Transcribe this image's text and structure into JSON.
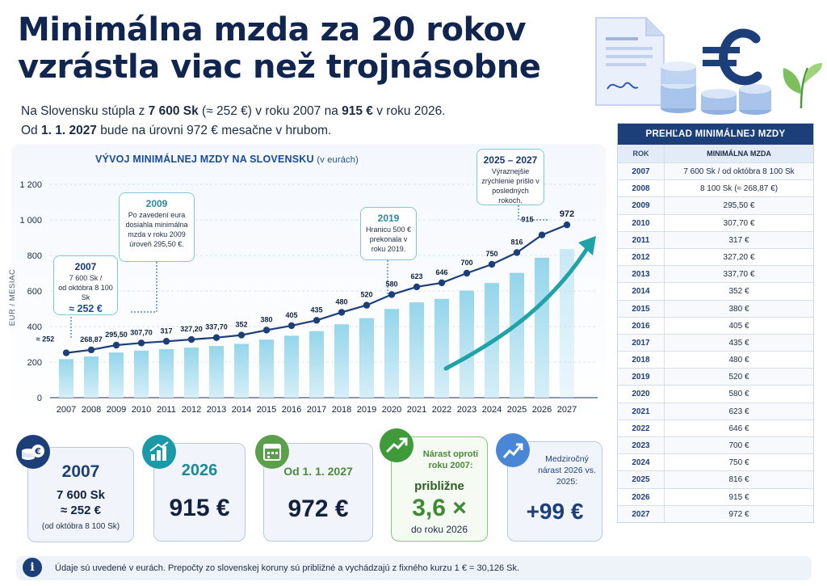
{
  "title": {
    "line1": "Minimálna mzda za 20 rokov",
    "line2": "vzrástla viac než trojnásobne"
  },
  "subtitle": {
    "l1_pre": "Na Slovensku stúpla z ",
    "l1_b1": "7 600 Sk",
    "l1_mid": " (≈ 252 €) v roku 2007 na ",
    "l1_b2": "915 €",
    "l1_post": " v roku 2026.",
    "l2_pre": "Od ",
    "l2_b": "1. 1. 2027",
    "l2_post": " bude na úrovni 972 € mesačne v hrubom."
  },
  "colors": {
    "navy": "#1c3f7a",
    "line": "#1c3f7a",
    "bar_top": "#8fd3ea",
    "bar_bottom": "#d4eef7",
    "arrow": "#1fa2a8"
  },
  "chart_data": {
    "type": "bar",
    "title": "VÝVOJ MINIMÁLNEJ MZDY NA SLOVENSKU",
    "title_unit": "(v eurách)",
    "ylabel": "EUR / MESIAC",
    "ylim": [
      0,
      1200
    ],
    "yticks": [
      0,
      200,
      400,
      600,
      800,
      1000,
      1200
    ],
    "ytick_labels": [
      "0",
      "200",
      "400",
      "600",
      "800",
      "1 000",
      "1 200"
    ],
    "categories": [
      "2007",
      "2008",
      "2009",
      "2010",
      "2011",
      "2012",
      "2013",
      "2014",
      "2015",
      "2016",
      "2017",
      "2018",
      "2019",
      "2020",
      "2021",
      "2022",
      "2023",
      "2024",
      "2025",
      "2026",
      "2027"
    ],
    "values": [
      252,
      268.87,
      295.5,
      307.7,
      317,
      327.2,
      337.7,
      352,
      380,
      405,
      435,
      480,
      520,
      580,
      623,
      646,
      700,
      750,
      816,
      915,
      972
    ],
    "data_labels": [
      "≈ 252",
      "268,87",
      "295,50",
      "307,70",
      "317",
      "327,20",
      "337,70",
      "352",
      "380",
      "405",
      "435",
      "480",
      "520",
      "580",
      "623",
      "646",
      "700",
      "750",
      "816",
      "915",
      "972"
    ],
    "grid": true,
    "legend": "none"
  },
  "callouts": {
    "c2007": {
      "year": "2007",
      "text1": "7 600 Sk /",
      "text2": "od októbra 8 100 Sk",
      "big": "≈ 252 €"
    },
    "c2009": {
      "year": "2009",
      "text": "Po zavedení eura dosiahla minimálna mzda v roku 2009 úroveň 295,50 €."
    },
    "c2019": {
      "year": "2019",
      "text": "Hranicu 500 € prekonala v roku 2019."
    },
    "c2025": {
      "year": "2025 – 2027",
      "text": "Výraznejšie zrýchlenie prišlo v posledných rokoch."
    }
  },
  "table": {
    "title": "PREHĽAD MINIMÁLNEJ MZDY",
    "col_year": "ROK",
    "col_wage": "MINIMÁLNA MZDA",
    "rows": [
      {
        "year": "2007",
        "wage": "7 600 Sk / od októbra 8 100 Sk"
      },
      {
        "year": "2008",
        "wage": "8 100 Sk (≈ 268,87 €)"
      },
      {
        "year": "2009",
        "wage": "295,50 €"
      },
      {
        "year": "2010",
        "wage": "307,70 €"
      },
      {
        "year": "2011",
        "wage": "317 €"
      },
      {
        "year": "2012",
        "wage": "327,20 €"
      },
      {
        "year": "2013",
        "wage": "337,70 €"
      },
      {
        "year": "2014",
        "wage": "352 €"
      },
      {
        "year": "2015",
        "wage": "380 €"
      },
      {
        "year": "2016",
        "wage": "405 €"
      },
      {
        "year": "2017",
        "wage": "435 €"
      },
      {
        "year": "2018",
        "wage": "480 €"
      },
      {
        "year": "2019",
        "wage": "520 €"
      },
      {
        "year": "2020",
        "wage": "580 €"
      },
      {
        "year": "2021",
        "wage": "623 €"
      },
      {
        "year": "2022",
        "wage": "646 €"
      },
      {
        "year": "2023",
        "wage": "700 €"
      },
      {
        "year": "2024",
        "wage": "750 €"
      },
      {
        "year": "2025",
        "wage": "816 €"
      },
      {
        "year": "2026",
        "wage": "915 €"
      },
      {
        "year": "2027",
        "wage": "972 €"
      }
    ]
  },
  "kpis": {
    "k1": {
      "year": "2007",
      "line1": "7 600 Sk",
      "line2": "≈ 252 €",
      "line3": "(od októbra 8 100 Sk)",
      "icon": "coins-euro-icon",
      "icon_color": "#1c3f7a"
    },
    "k2": {
      "year": "2026",
      "value": "915 €",
      "icon": "bar-chart-up-icon",
      "icon_color": "#1a9aa8"
    },
    "k3": {
      "year": "Od 1. 1. 2027",
      "value": "972 €",
      "icon": "calendar-icon",
      "icon_color": "#5aa04a"
    },
    "k4": {
      "label": "Nárast oproti roku 2007:",
      "approx": "približne",
      "value": "3,6 ×",
      "sub": "do roku 2026",
      "icon": "trend-up-icon",
      "icon_color": "#3f9a3a"
    },
    "k5": {
      "label": "Medziročný nárast 2026 vs. 2025:",
      "value": "+99 €",
      "icon": "growth-arrow-icon",
      "icon_color": "#4a86d6"
    }
  },
  "footer": {
    "text": "Údaje sú uvedené v eurách. Prepočty zo slovenskej koruny sú približné a vychádzajú z fixného kurzu 1 € = 30,126 Sk."
  }
}
